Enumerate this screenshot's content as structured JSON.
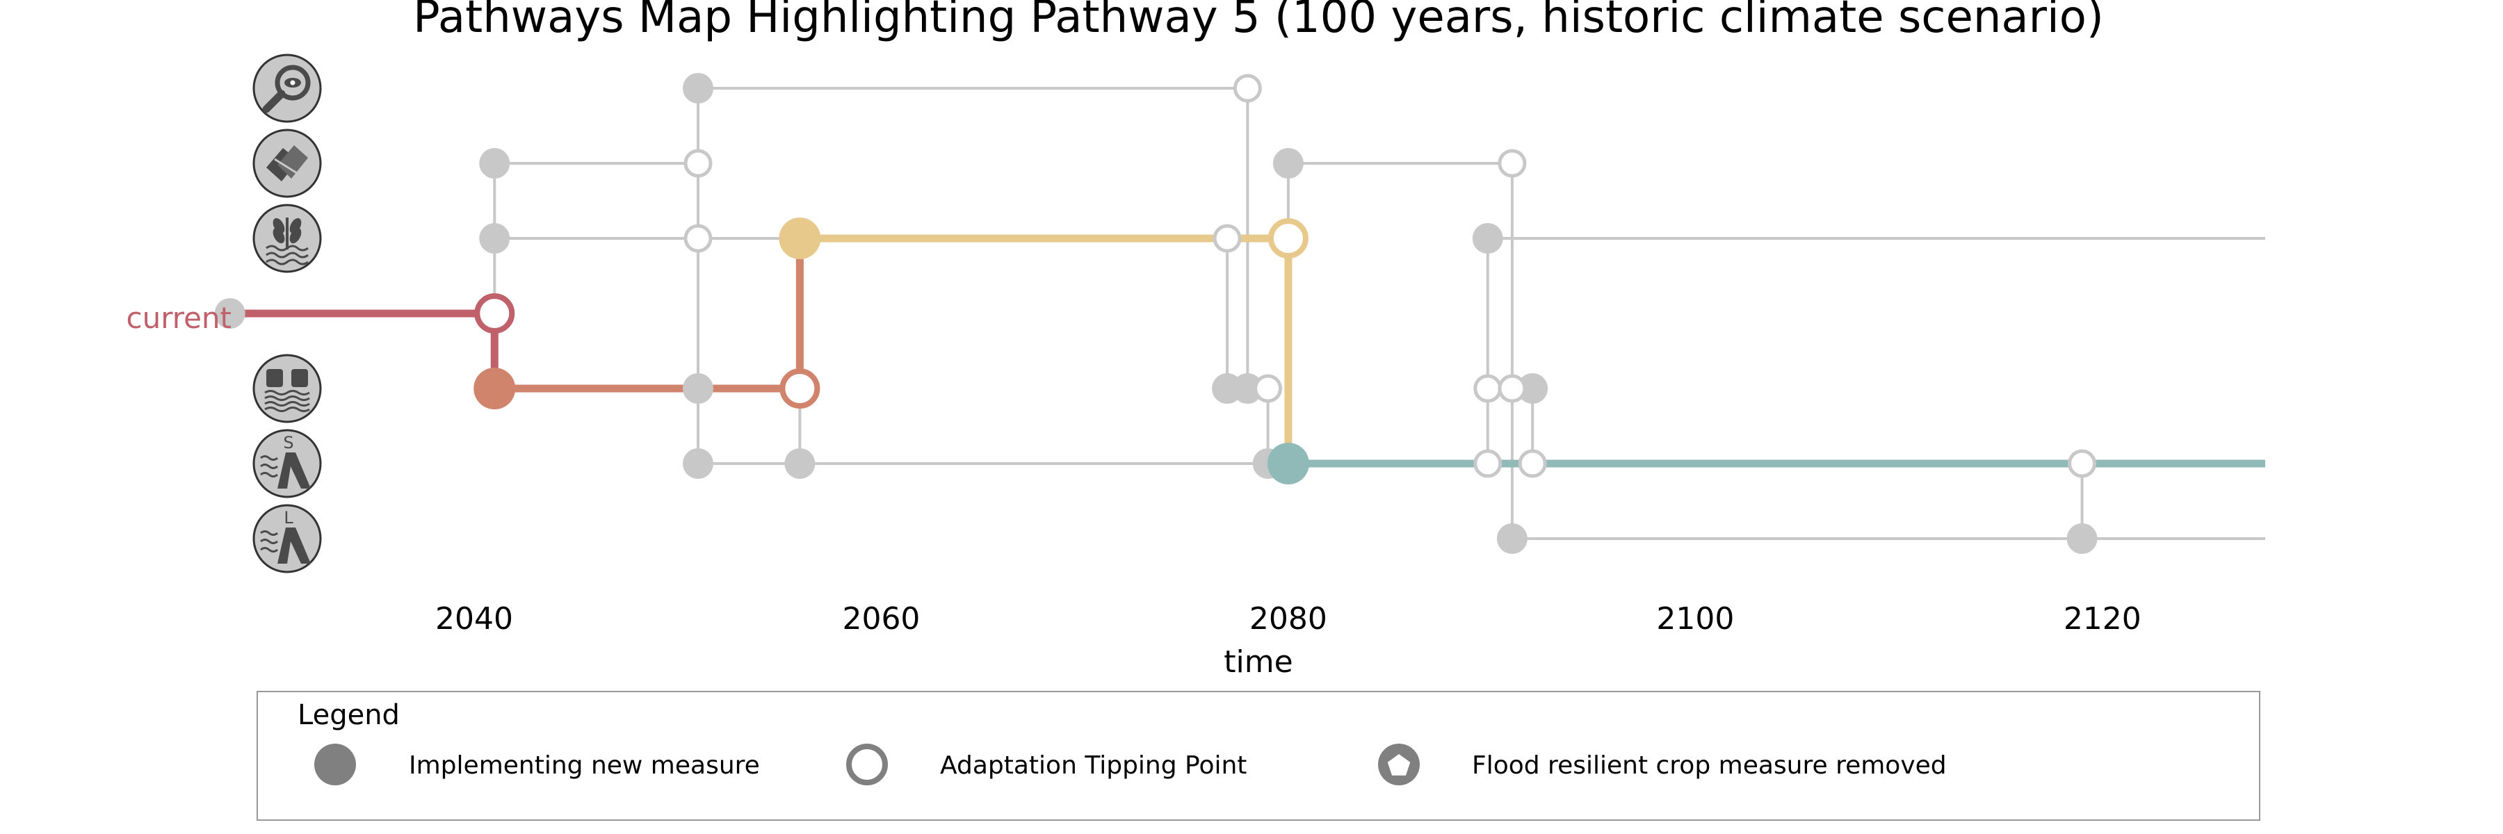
{
  "chart_data": {
    "type": "pathways-map",
    "title": "Pathways Map Highlighting Pathway 5 (100 years, historic climate scenario)",
    "xlabel": "time",
    "xlim": [
      2029,
      2128
    ],
    "x_ticks": [
      2040,
      2060,
      2080,
      2100,
      2120
    ],
    "grid": false,
    "current_label": "current",
    "rows": [
      {
        "id": "monitoring",
        "icon": "magnifier-eye-icon"
      },
      {
        "id": "cooperation",
        "icon": "handshake-icon"
      },
      {
        "id": "flood-resilient-crops",
        "icon": "crop-water-icon"
      },
      {
        "id": "current",
        "icon": ""
      },
      {
        "id": "sandbags",
        "icon": "sandbag-barrier-icon"
      },
      {
        "id": "small-dike",
        "icon": "dike-small-icon",
        "icon_letter": "S"
      },
      {
        "id": "large-dike",
        "icon": "dike-large-icon",
        "icon_letter": "L"
      }
    ],
    "grey_pathways": [
      {
        "row": 0,
        "start": 2051,
        "end": 2078
      },
      {
        "row": 1,
        "start": 2041,
        "end": 2051
      },
      {
        "row": 1,
        "start": 2080,
        "end": 2091
      },
      {
        "row": 2,
        "start": 2041,
        "end": 2051
      },
      {
        "row": 2,
        "start": 2051,
        "end": 2056
      },
      {
        "row": 2,
        "start": 2089.8,
        "end": 2128
      },
      {
        "row": 4,
        "start": 2051,
        "end": 2056
      },
      {
        "row": 4,
        "start": 2076.8,
        "end": 2079
      },
      {
        "row": 4,
        "start": 2089.8,
        "end": 2092
      },
      {
        "row": 5,
        "start": 2051,
        "end": 2079
      },
      {
        "row": 5,
        "start": 2089.8,
        "end": 2128
      },
      {
        "row": 6,
        "start": 2091,
        "end": 2128
      }
    ],
    "grey_transfers": [
      {
        "x": 2041,
        "from_row": 1,
        "to_row": 3
      },
      {
        "x": 2051,
        "from_row": 0,
        "to_row": 5
      },
      {
        "x": 2056,
        "from_row": 4,
        "to_row": 5
      },
      {
        "x": 2077,
        "from_row": 2,
        "to_row": 4
      },
      {
        "x": 2078,
        "from_row": 0,
        "to_row": 4
      },
      {
        "x": 2079,
        "from_row": 4,
        "to_row": 5
      },
      {
        "x": 2080,
        "from_row": 1,
        "to_row": 2
      },
      {
        "x": 2089.8,
        "from_row": 2,
        "to_row": 5
      },
      {
        "x": 2091,
        "from_row": 1,
        "to_row": 6
      },
      {
        "x": 2092,
        "from_row": 4,
        "to_row": 5
      },
      {
        "x": 2119,
        "from_row": 5,
        "to_row": 6
      }
    ],
    "grey_implement_points": [
      {
        "x": 2051,
        "row": 0
      },
      {
        "x": 2041,
        "row": 1
      },
      {
        "x": 2080,
        "row": 1
      },
      {
        "x": 2041,
        "row": 2
      },
      {
        "x": 2089.8,
        "row": 2
      },
      {
        "x": 2028,
        "row": 3
      },
      {
        "x": 2051,
        "row": 4
      },
      {
        "x": 2077,
        "row": 4
      },
      {
        "x": 2078,
        "row": 4
      },
      {
        "x": 2092,
        "row": 4
      },
      {
        "x": 2051,
        "row": 5
      },
      {
        "x": 2056,
        "row": 5
      },
      {
        "x": 2079,
        "row": 5
      },
      {
        "x": 2091,
        "row": 6
      },
      {
        "x": 2119,
        "row": 6
      }
    ],
    "grey_tipping_points": [
      {
        "x": 2078,
        "row": 0
      },
      {
        "x": 2051,
        "row": 1
      },
      {
        "x": 2091,
        "row": 1
      },
      {
        "x": 2051,
        "row": 2
      },
      {
        "x": 2077,
        "row": 2
      },
      {
        "x": 2079,
        "row": 4
      },
      {
        "x": 2089.8,
        "row": 4
      },
      {
        "x": 2091,
        "row": 4
      },
      {
        "x": 2089.8,
        "row": 5
      },
      {
        "x": 2092,
        "row": 5
      },
      {
        "x": 2119,
        "row": 5
      }
    ],
    "highlight": [
      {
        "row": 3,
        "start": 2028,
        "end": 2041,
        "color": "#c0606a",
        "transfer_to_row": 4
      },
      {
        "row": 4,
        "start": 2041,
        "end": 2056,
        "color": "#d0846c",
        "transfer_to_row": 2
      },
      {
        "row": 2,
        "start": 2056,
        "end": 2080,
        "color": "#e8c98c",
        "transfer_to_row": 5
      },
      {
        "row": 5,
        "start": 2080,
        "end": 2128,
        "color": "#8fbab7"
      }
    ],
    "legend": {
      "title": "Legend",
      "items": [
        {
          "label": "Implementing new measure",
          "marker": "filled-circle"
        },
        {
          "label": "Adaptation Tipping Point",
          "marker": "open-circle"
        },
        {
          "label": "Flood resilient crop measure removed",
          "marker": "pentagon"
        }
      ]
    },
    "colors": {
      "grey": "#c8c8c8",
      "marker_grey": "#808080",
      "icon_fill": "#c8c8c8",
      "icon_dark": "#4a4a4a"
    }
  }
}
